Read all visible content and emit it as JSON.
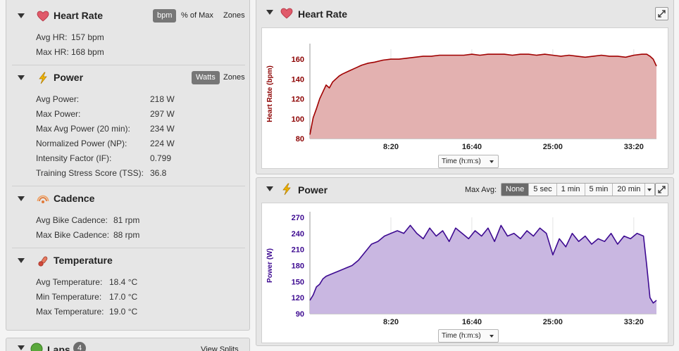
{
  "left": {
    "heart_rate": {
      "title": "Heart Rate",
      "toggles": [
        {
          "label": "bpm",
          "active": true
        },
        {
          "label": "% of Max",
          "active": false
        },
        {
          "label": "Zones",
          "active": false
        }
      ],
      "metrics": [
        {
          "label": "Avg HR:",
          "value": "157 bpm"
        },
        {
          "label": "Max HR:",
          "value": "168 bpm"
        }
      ]
    },
    "power": {
      "title": "Power",
      "toggles": [
        {
          "label": "Watts",
          "active": true
        },
        {
          "label": "Zones",
          "active": false
        }
      ],
      "metrics": [
        {
          "label": "Avg Power:",
          "value": "218 W"
        },
        {
          "label": "Max Power:",
          "value": "297 W"
        },
        {
          "label": "Max Avg Power (20 min):",
          "value": "234 W"
        },
        {
          "label": "Normalized Power (NP):",
          "value": "224 W"
        },
        {
          "label": "Intensity Factor (IF):",
          "value": "0.799"
        },
        {
          "label": "Training Stress Score (TSS):",
          "value": "36.8"
        }
      ]
    },
    "cadence": {
      "title": "Cadence",
      "metrics": [
        {
          "label": "Avg Bike Cadence:",
          "value": "81 rpm"
        },
        {
          "label": "Max Bike Cadence:",
          "value": "88 rpm"
        }
      ]
    },
    "temperature": {
      "title": "Temperature",
      "metrics": [
        {
          "label": "Avg Temperature:",
          "value": "18.4 °C"
        },
        {
          "label": "Min Temperature:",
          "value": "17.0 °C"
        },
        {
          "label": "Max Temperature:",
          "value": "19.0 °C"
        }
      ]
    },
    "laps": {
      "title": "Laps",
      "count": "4",
      "view_splits": "View Splits"
    }
  },
  "hr_card": {
    "title": "Heart Rate",
    "time_select": "Time (h:m:s)"
  },
  "power_card": {
    "title": "Power",
    "max_avg_label": "Max Avg:",
    "options": [
      {
        "label": "None",
        "active": true
      },
      {
        "label": "5 sec",
        "active": false
      },
      {
        "label": "1 min",
        "active": false
      },
      {
        "label": "5 min",
        "active": false
      },
      {
        "label": "20 min",
        "active": false
      }
    ],
    "time_select": "Time (h:m:s)"
  },
  "colors": {
    "hr_line": "#a00000",
    "hr_fill": "#e3b1b0",
    "power_line": "#3d0a91",
    "power_fill": "#c9b7e1",
    "hr_axis_text": "#8c0000",
    "power_axis_text": "#3d0a91"
  },
  "icons": {
    "heart_rate": "heart-icon",
    "power": "lightning-bolt-icon",
    "cadence": "cadence-icon",
    "temperature": "thermometer-icon",
    "expand": "expand-arrows-icon"
  },
  "chart_data": [
    {
      "type": "area",
      "ylabel": "Heart Rate (bpm)",
      "xlabel": "Time (h:m:s)",
      "ylim": [
        80,
        170
      ],
      "xlim": [
        0,
        2140
      ],
      "yticks": [
        80,
        100,
        120,
        140,
        160
      ],
      "xticks": [
        {
          "value": 500,
          "label": "8:20"
        },
        {
          "value": 1000,
          "label": "16:40"
        },
        {
          "value": 1500,
          "label": "25:00"
        },
        {
          "value": 2000,
          "label": "33:20"
        }
      ],
      "series": [
        {
          "x": [
            0,
            20,
            40,
            60,
            80,
            100,
            120,
            140,
            160,
            180,
            200,
            240,
            280,
            320,
            360,
            400,
            450,
            500,
            550,
            600,
            650,
            700,
            750,
            800,
            850,
            900,
            950,
            1000,
            1050,
            1100,
            1150,
            1200,
            1250,
            1300,
            1350,
            1400,
            1450,
            1500,
            1550,
            1600,
            1650,
            1700,
            1750,
            1800,
            1850,
            1900,
            1950,
            2000,
            2050,
            2080,
            2100,
            2120,
            2140
          ],
          "y": [
            84,
            101,
            110,
            120,
            127,
            134,
            131,
            137,
            140,
            143,
            145,
            148,
            151,
            154,
            156,
            157,
            159,
            160,
            160,
            161,
            162,
            163,
            163,
            164,
            164,
            164,
            164,
            165,
            164,
            165,
            165,
            165,
            164,
            165,
            165,
            164,
            165,
            164,
            163,
            164,
            163,
            162,
            163,
            164,
            163,
            163,
            162,
            164,
            165,
            165,
            163,
            160,
            153
          ]
        }
      ]
    },
    {
      "type": "area",
      "ylabel": "Power (W)",
      "xlabel": "Time (h:m:s)",
      "ylim": [
        90,
        270
      ],
      "xlim": [
        0,
        2140
      ],
      "yticks": [
        90,
        120,
        150,
        180,
        210,
        240,
        270
      ],
      "xticks": [
        {
          "value": 500,
          "label": "8:20"
        },
        {
          "value": 1000,
          "label": "16:40"
        },
        {
          "value": 1500,
          "label": "25:00"
        },
        {
          "value": 2000,
          "label": "33:20"
        }
      ],
      "series": [
        {
          "x": [
            0,
            20,
            40,
            60,
            80,
            100,
            140,
            180,
            220,
            260,
            300,
            340,
            380,
            420,
            460,
            500,
            540,
            580,
            620,
            660,
            700,
            740,
            780,
            820,
            860,
            900,
            940,
            980,
            1020,
            1060,
            1100,
            1140,
            1180,
            1220,
            1260,
            1300,
            1340,
            1380,
            1420,
            1460,
            1500,
            1540,
            1580,
            1620,
            1660,
            1700,
            1740,
            1780,
            1820,
            1860,
            1900,
            1940,
            1980,
            2020,
            2060,
            2080,
            2100,
            2120,
            2140
          ],
          "y": [
            115,
            125,
            140,
            145,
            155,
            160,
            165,
            170,
            175,
            180,
            190,
            205,
            220,
            225,
            235,
            240,
            245,
            240,
            255,
            240,
            230,
            250,
            235,
            245,
            225,
            250,
            240,
            230,
            245,
            235,
            250,
            225,
            255,
            235,
            240,
            230,
            245,
            235,
            250,
            240,
            200,
            230,
            215,
            240,
            225,
            235,
            220,
            230,
            225,
            240,
            220,
            235,
            230,
            240,
            235,
            180,
            120,
            110,
            115
          ]
        }
      ]
    }
  ]
}
